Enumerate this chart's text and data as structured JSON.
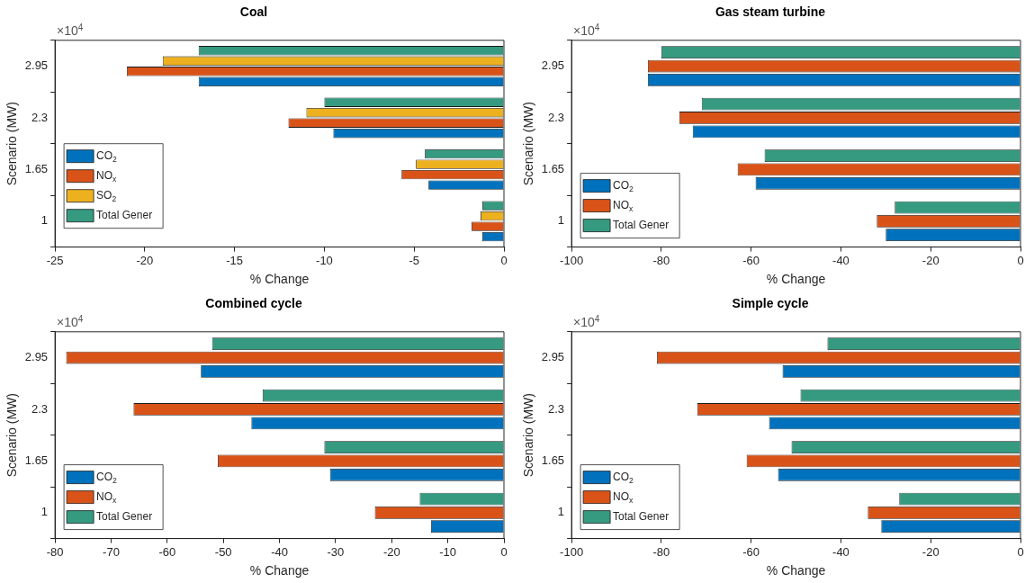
{
  "chart_data": [
    {
      "type": "bar",
      "orientation": "horizontal",
      "title": "Coal",
      "xlabel": "% Change",
      "ylabel": "Scenario (MW)",
      "annotations": [
        "×10$^{4}$"
      ],
      "categories": [
        "2.95",
        "2.3",
        "1.65",
        "1"
      ],
      "xlim": [
        -25,
        0
      ],
      "xticks": [
        -25,
        -20,
        -15,
        -10,
        -5,
        0
      ],
      "grid": false,
      "legend": "left",
      "series": [
        {
          "name": "CO$_{2}$",
          "color": "#0072bd",
          "values": [
            -17,
            -9.5,
            -4.2,
            -1.2
          ]
        },
        {
          "name": "NO$_{x}$",
          "color": "#d95319",
          "values": [
            -21,
            -12,
            -5.7,
            -1.8
          ]
        },
        {
          "name": "SO$_{2}$",
          "color": "#edb120",
          "values": [
            -19,
            -11,
            -4.9,
            -1.3
          ]
        },
        {
          "name": "Total Gener",
          "color": "#359a80",
          "values": [
            -17,
            -10,
            -4.4,
            -1.2
          ]
        }
      ]
    },
    {
      "type": "bar",
      "orientation": "horizontal",
      "title": "Gas steam turbine",
      "xlabel": "% Change",
      "ylabel": "Scenario (MW)",
      "annotations": [
        "×10$^{4}$"
      ],
      "categories": [
        "2.95",
        "2.3",
        "1.65",
        "1"
      ],
      "xlim": [
        -100,
        0
      ],
      "xticks": [
        -100,
        -80,
        -60,
        -40,
        -20,
        0
      ],
      "grid": false,
      "legend": "bottom left",
      "series": [
        {
          "name": "CO$_{2}$",
          "color": "#0072bd",
          "values": [
            -83,
            -73,
            -59,
            -30
          ]
        },
        {
          "name": "NO$_{x}$",
          "color": "#d95319",
          "values": [
            -83,
            -76,
            -63,
            -32
          ]
        },
        {
          "name": "Total Gener",
          "color": "#359a80",
          "values": [
            -80,
            -71,
            -57,
            -28
          ]
        }
      ]
    },
    {
      "type": "bar",
      "orientation": "horizontal",
      "title": "Combined cycle",
      "xlabel": "% Change",
      "ylabel": "Scenario (MW)",
      "annotations": [
        "×10$^{4}$"
      ],
      "categories": [
        "2.95",
        "2.3",
        "1.65",
        "1"
      ],
      "xlim": [
        -80,
        0
      ],
      "xticks": [
        -80,
        -70,
        -60,
        -50,
        -40,
        -30,
        -20,
        -10,
        0
      ],
      "grid": false,
      "legend": "bottom left",
      "series": [
        {
          "name": "CO$_{2}$",
          "color": "#0072bd",
          "values": [
            -54,
            -45,
            -31,
            -13
          ]
        },
        {
          "name": "NO$_{x}$",
          "color": "#d95319",
          "values": [
            -78,
            -66,
            -51,
            -23
          ]
        },
        {
          "name": "Total Gener",
          "color": "#359a80",
          "values": [
            -52,
            -43,
            -32,
            -15
          ]
        }
      ]
    },
    {
      "type": "bar",
      "orientation": "horizontal",
      "title": "Simple cycle",
      "xlabel": "% Change",
      "ylabel": "Scenario (MW)",
      "annotations": [
        "×10$^{4}$"
      ],
      "categories": [
        "2.95",
        "2.3",
        "1.65",
        "1"
      ],
      "xlim": [
        -100,
        0
      ],
      "xticks": [
        -100,
        -80,
        -60,
        -40,
        -20,
        0
      ],
      "grid": false,
      "legend": "bottom left",
      "series": [
        {
          "name": "CO$_{2}$",
          "color": "#0072bd",
          "values": [
            -53,
            -56,
            -54,
            -31
          ]
        },
        {
          "name": "NO$_{x}$",
          "color": "#d95319",
          "values": [
            -81,
            -72,
            -61,
            -34
          ]
        },
        {
          "name": "Total Gener",
          "color": "#359a80",
          "values": [
            -43,
            -49,
            -51,
            -27
          ]
        }
      ]
    }
  ]
}
